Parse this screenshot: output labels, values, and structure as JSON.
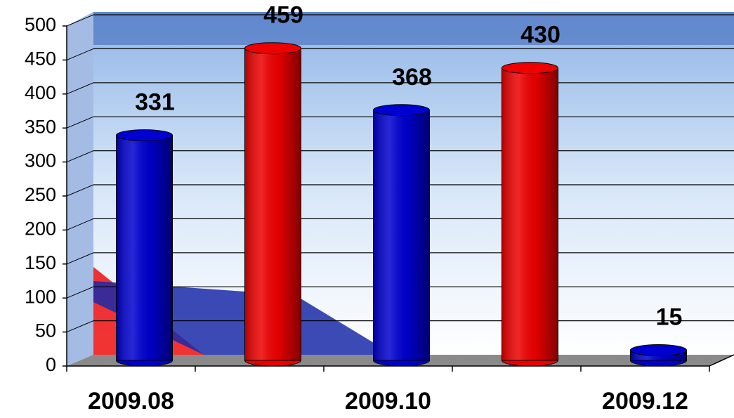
{
  "chart_data": {
    "type": "bar",
    "categories": [
      "2009.08",
      null,
      "2009.10",
      null,
      "2009.12"
    ],
    "values": [
      331,
      459,
      368,
      430,
      15
    ],
    "colors": [
      "#0000d0",
      "#ee0000",
      "#0000d0",
      "#ee0000",
      "#0000d0"
    ],
    "ylim": [
      0,
      500
    ],
    "yticks": [
      0,
      50,
      100,
      150,
      200,
      250,
      300,
      350,
      400,
      450,
      500
    ],
    "grid": true
  }
}
